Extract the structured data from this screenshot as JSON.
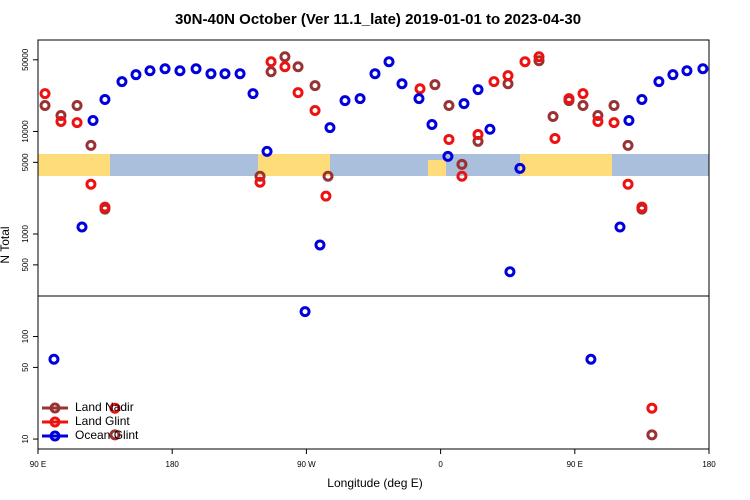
{
  "chart_data": {
    "type": "scatter",
    "title": "30N-40N October (Ver 11.1_late)   2019-01-01 to 2023-04-30",
    "x_label": "Longitude (deg E)",
    "y_label": "N Total",
    "xlim": [
      90,
      540
    ],
    "ylim": [
      8,
      78000
    ],
    "ylog": true,
    "legend": "bottom-left",
    "xticks": [
      {
        "value": 90,
        "label": "90 E"
      },
      180,
      {
        "value": 270,
        "label": "90 W"
      },
      {
        "value": 360,
        "label": "0"
      },
      {
        "value": 450,
        "label": "90 E"
      },
      {
        "value": 540,
        "label": "180"
      }
    ],
    "yticks": [
      10,
      50,
      100,
      500,
      1000,
      5000,
      10000,
      50000
    ],
    "series": [
      {
        "name": "Land Nadir",
        "color": "#993333",
        "x": [
          94.7,
          105.4,
          116.2,
          125.5,
          134.9,
          141.6,
          238.9,
          246.3,
          255.6,
          264.4,
          275.8,
          284.5,
          356.2,
          365.6,
          374.3,
          385.1,
          405.2,
          426.0,
          435.4,
          446.1,
          455.5,
          465.5,
          476.3,
          485.7,
          495.0,
          501.7
        ],
        "values": [
          17900,
          14300,
          17900,
          7310,
          1750,
          11,
          3660,
          38200,
          53500,
          42800,
          28000,
          3660,
          28600,
          17900,
          4780,
          8000,
          29200,
          48900,
          14000,
          20000,
          17900,
          14300,
          17900,
          7310,
          1750,
          11
        ]
      },
      {
        "name": "Land Glint",
        "color": "#ee1111",
        "x": [
          94.7,
          105.4,
          116.2,
          125.5,
          134.9,
          141.6,
          238.9,
          246.3,
          255.6,
          264.4,
          275.8,
          283.1,
          346.2,
          365.6,
          374.3,
          385.1,
          395.8,
          405.2,
          416.6,
          426.0,
          436.7,
          446.1,
          455.5,
          465.5,
          476.3,
          485.7,
          495.0,
          501.7
        ],
        "values": [
          23400,
          12500,
          12200,
          3060,
          1830,
          20,
          3200,
          47900,
          42800,
          23900,
          16000,
          2340,
          26100,
          8360,
          3660,
          9350,
          30600,
          35000,
          47900,
          53500,
          8550,
          20900,
          23400,
          12500,
          12200,
          3060,
          1830,
          20
        ]
      },
      {
        "name": "Ocean Glint",
        "color": "#0000dd",
        "x": [
          100.7,
          119.5,
          126.9,
          134.9,
          146.3,
          155.7,
          165.1,
          175.2,
          185.2,
          196.0,
          206.0,
          215.4,
          225.5,
          234.2,
          243.6,
          269.1,
          279.1,
          285.8,
          295.9,
          306.0,
          316.0,
          325.4,
          334.1,
          345.5,
          354.2,
          364.9,
          375.7,
          385.1,
          393.1,
          406.5,
          413.2,
          460.8,
          480.3,
          486.3,
          495.0,
          506.4,
          515.8,
          525.2,
          535.9
        ],
        "values": [
          60,
          1170,
          12800,
          20500,
          30600,
          35800,
          39100,
          40900,
          39100,
          40900,
          36600,
          36600,
          36600,
          23400,
          6400,
          175,
          782,
          10900,
          20000,
          20900,
          36600,
          47900,
          29200,
          20900,
          11700,
          5710,
          18700,
          25600,
          10500,
          428,
          4370,
          60,
          1170,
          12800,
          20500,
          30600,
          35800,
          39100,
          40900
        ]
      }
    ]
  }
}
